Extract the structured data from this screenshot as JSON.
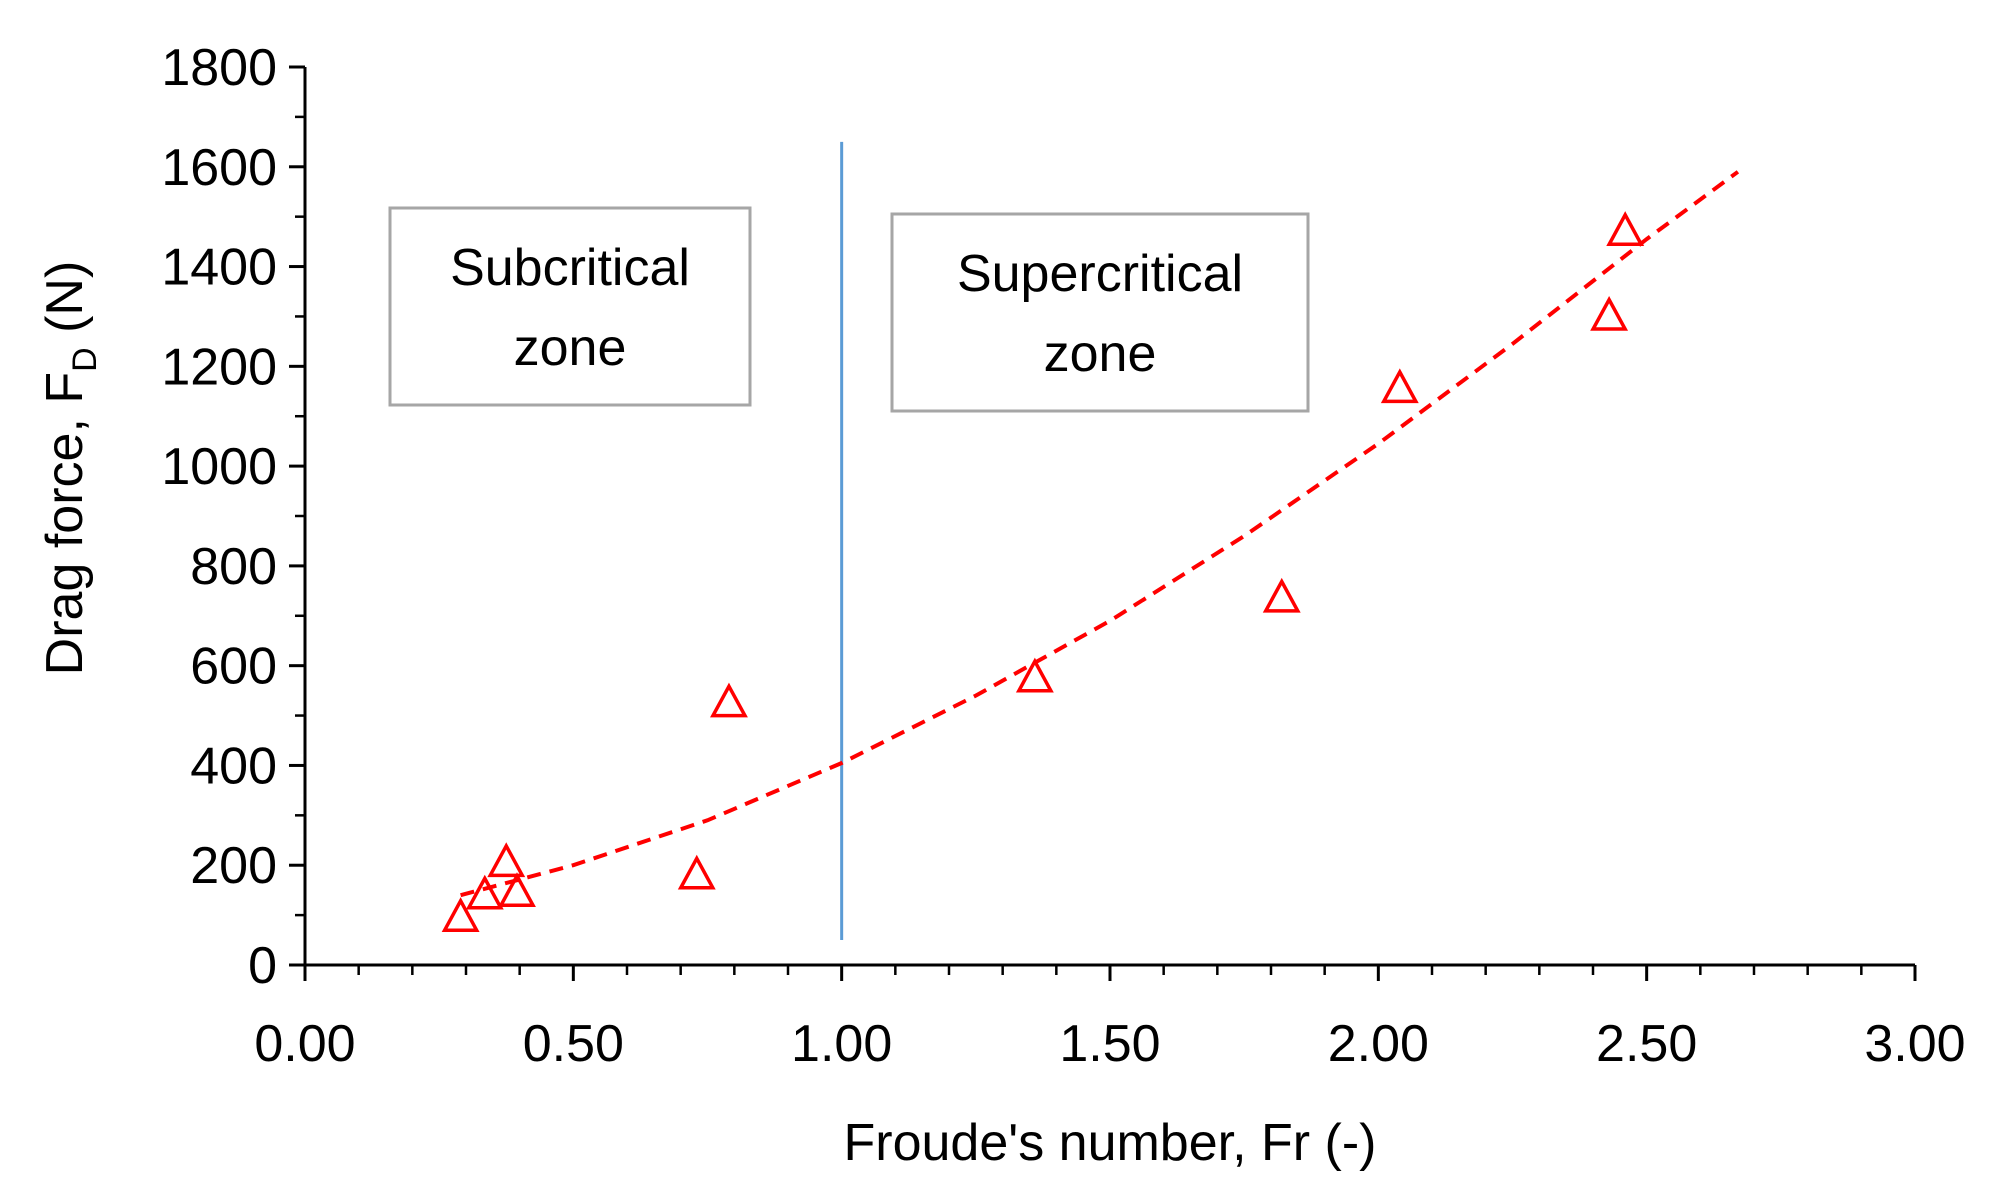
{
  "chart_data": {
    "type": "scatter",
    "title": "",
    "xlabel": "Froude's number, Fr (-)",
    "ylabel_main": "Drag force, F",
    "ylabel_sub": "D",
    "ylabel_suffix": " (N)",
    "xlim": [
      0,
      3
    ],
    "ylim": [
      0,
      1800
    ],
    "x_ticks": [
      0,
      0.5,
      1,
      1.5,
      2,
      2.5,
      3
    ],
    "x_tick_labels": [
      "0.00",
      "0.50",
      "1.00",
      "1.50",
      "2.00",
      "2.50",
      "3.00"
    ],
    "y_ticks": [
      0,
      200,
      400,
      600,
      800,
      1000,
      1200,
      1400,
      1600,
      1800
    ],
    "y_tick_labels": [
      "0",
      "200",
      "400",
      "600",
      "800",
      "1000",
      "1200",
      "1400",
      "1600",
      "1800"
    ],
    "x_minor_step": 0.1,
    "y_minor_step": 100,
    "grid": false,
    "series": [
      {
        "marker": "open-triangle",
        "color": "#ff0000",
        "points": [
          {
            "x": 0.29,
            "y": 95
          },
          {
            "x": 0.335,
            "y": 140
          },
          {
            "x": 0.375,
            "y": 205
          },
          {
            "x": 0.395,
            "y": 145
          },
          {
            "x": 0.73,
            "y": 180
          },
          {
            "x": 0.79,
            "y": 525
          },
          {
            "x": 1.36,
            "y": 575
          },
          {
            "x": 1.82,
            "y": 735
          },
          {
            "x": 2.04,
            "y": 1155
          },
          {
            "x": 2.43,
            "y": 1300
          },
          {
            "x": 2.46,
            "y": 1470
          }
        ]
      }
    ],
    "trendline": {
      "style": "dashed",
      "color": "#ff0000",
      "points": [
        {
          "x": 0.29,
          "y": 140
        },
        {
          "x": 0.5,
          "y": 200
        },
        {
          "x": 0.75,
          "y": 290
        },
        {
          "x": 1.0,
          "y": 405
        },
        {
          "x": 1.25,
          "y": 540
        },
        {
          "x": 1.5,
          "y": 690
        },
        {
          "x": 1.75,
          "y": 860
        },
        {
          "x": 2.0,
          "y": 1045
        },
        {
          "x": 2.25,
          "y": 1245
        },
        {
          "x": 2.5,
          "y": 1455
        },
        {
          "x": 2.67,
          "y": 1590
        }
      ]
    },
    "vertical_line": {
      "x": 1.0,
      "y_from": 50,
      "y_to": 1650,
      "color": "#5b9bd5"
    },
    "annotations": [
      {
        "line1": "Subcritical",
        "line2": "zone"
      },
      {
        "line1": "Supercritical",
        "line2": "zone"
      }
    ]
  }
}
